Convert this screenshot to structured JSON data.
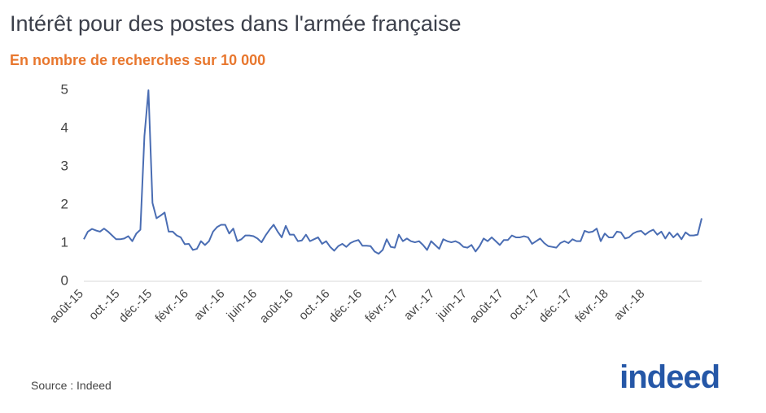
{
  "chart_data": {
    "type": "line",
    "title": "Intérêt pour des postes dans l'armée française",
    "subtitle": "En nombre de recherches sur 10 000",
    "source": "Source : Indeed",
    "logo": "indeed",
    "categories": [
      "août-15",
      null,
      null,
      null,
      null,
      null,
      null,
      null,
      null,
      "oct.-15",
      null,
      null,
      null,
      null,
      null,
      null,
      null,
      "déc.-15",
      null,
      null,
      null,
      null,
      null,
      null,
      null,
      null,
      "févr.-16",
      null,
      null,
      null,
      null,
      null,
      null,
      null,
      null,
      "avr.-16",
      null,
      null,
      null,
      null,
      null,
      null,
      null,
      "juin-16",
      null,
      null,
      null,
      null,
      null,
      null,
      null,
      null,
      "août-16",
      null,
      null,
      null,
      null,
      null,
      null,
      null,
      null,
      "oct.-16",
      null,
      null,
      null,
      null,
      null,
      null,
      null,
      "déc.-16",
      null,
      null,
      null,
      null,
      null,
      null,
      null,
      null,
      "févr.-17",
      null,
      null,
      null,
      null,
      null,
      null,
      null,
      null,
      "avr.-17",
      null,
      null,
      null,
      null,
      null,
      null,
      null,
      "juin-17",
      null,
      null,
      null,
      null,
      null,
      null,
      null,
      null,
      "août-17",
      null,
      null,
      null,
      null,
      null,
      null,
      null,
      null,
      "oct.-17",
      null,
      null,
      null,
      null,
      null,
      null,
      null,
      "déc.-17",
      null,
      null,
      null,
      null,
      null,
      null,
      null,
      null,
      "févr.-18",
      null,
      null,
      null,
      null,
      null,
      null,
      null,
      null,
      "avr.-18",
      null,
      null,
      null,
      null,
      null,
      null,
      null,
      null,
      null,
      null,
      null,
      null,
      null,
      null
    ],
    "values": [
      1.1,
      1.3,
      1.37,
      1.33,
      1.3,
      1.38,
      1.3,
      1.2,
      1.1,
      1.1,
      1.12,
      1.18,
      1.05,
      1.25,
      1.35,
      3.8,
      5.0,
      2.05,
      1.65,
      1.72,
      1.8,
      1.3,
      1.3,
      1.2,
      1.15,
      0.97,
      0.98,
      0.82,
      0.85,
      1.05,
      0.95,
      1.05,
      1.3,
      1.42,
      1.48,
      1.48,
      1.25,
      1.38,
      1.05,
      1.1,
      1.2,
      1.2,
      1.18,
      1.12,
      1.02,
      1.2,
      1.35,
      1.48,
      1.3,
      1.15,
      1.45,
      1.22,
      1.22,
      1.05,
      1.07,
      1.22,
      1.05,
      1.1,
      1.15,
      0.98,
      1.05,
      0.9,
      0.8,
      0.92,
      0.98,
      0.9,
      1.0,
      1.05,
      1.08,
      0.93,
      0.93,
      0.92,
      0.78,
      0.72,
      0.82,
      1.1,
      0.9,
      0.88,
      1.22,
      1.05,
      1.12,
      1.05,
      1.02,
      1.05,
      0.95,
      0.82,
      1.05,
      0.95,
      0.85,
      1.1,
      1.05,
      1.02,
      1.05,
      1.0,
      0.9,
      0.88,
      0.95,
      0.78,
      0.92,
      1.12,
      1.05,
      1.15,
      1.05,
      0.95,
      1.08,
      1.08,
      1.2,
      1.15,
      1.15,
      1.18,
      1.15,
      0.98,
      1.05,
      1.12,
      1.0,
      0.92,
      0.9,
      0.88,
      1.0,
      1.05,
      1.0,
      1.1,
      1.05,
      1.05,
      1.32,
      1.28,
      1.3,
      1.38,
      1.05,
      1.25,
      1.15,
      1.15,
      1.3,
      1.28,
      1.12,
      1.15,
      1.25,
      1.3,
      1.32,
      1.22,
      1.3,
      1.35,
      1.22,
      1.3,
      1.12,
      1.28,
      1.15,
      1.25,
      1.1,
      1.28,
      1.2,
      1.2,
      1.22,
      1.65
    ],
    "color": "#4a6db3",
    "ylim": [
      0,
      5
    ],
    "yticks": [
      0,
      1,
      2,
      3,
      4,
      5
    ],
    "grid": false
  }
}
